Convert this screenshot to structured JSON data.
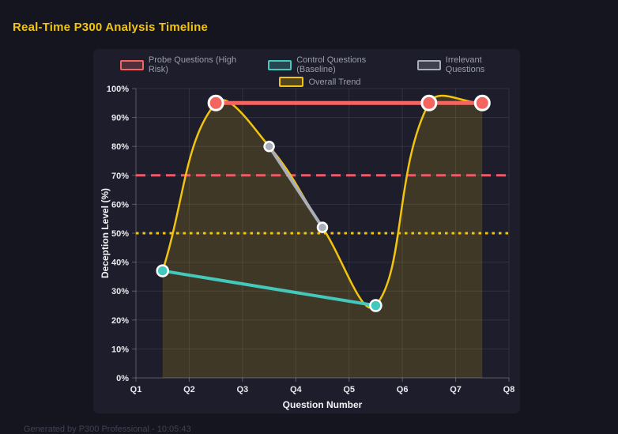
{
  "page": {
    "title": "Real-Time P300 Analysis Timeline",
    "footer": "Generated by P300 Professional - 10:05:43"
  },
  "colors": {
    "background": "#15151f",
    "card": "#1d1d2b",
    "title": "#f2c511",
    "grid": "rgba(255,255,255,0.09)",
    "axis": "rgba(255,255,255,0.28)",
    "tick_label": "#e9e9ee",
    "axis_title": "#f2f2f6",
    "legend_label": "#9a9ea9",
    "point_border": "#ffffff",
    "footer_text": "#3e4254"
  },
  "chart_data": {
    "type": "line",
    "title": "Real-Time P300 Analysis Timeline",
    "xlabel": "Question Number",
    "ylabel": "Deception Level (%)",
    "x_categories": [
      "Q1",
      "Q2",
      "Q3",
      "Q4",
      "Q5",
      "Q6",
      "Q7",
      "Q8"
    ],
    "x_range": [
      1,
      8
    ],
    "ylim": [
      0,
      100
    ],
    "y_ticks": [
      {
        "value": 0,
        "label": "0%"
      },
      {
        "value": 10,
        "label": "10%"
      },
      {
        "value": 20,
        "label": "20%"
      },
      {
        "value": 30,
        "label": "30%"
      },
      {
        "value": 40,
        "label": "40%"
      },
      {
        "value": 50,
        "label": "50%"
      },
      {
        "value": 60,
        "label": "60%"
      },
      {
        "value": 70,
        "label": "70%"
      },
      {
        "value": 80,
        "label": "80%"
      },
      {
        "value": 90,
        "label": "90%"
      },
      {
        "value": 100,
        "label": "100%"
      }
    ],
    "grid": true,
    "legend_position": "top",
    "series": [
      {
        "name": "Probe Questions (High Risk)",
        "color": "#f4655f",
        "line_width": 5,
        "point_radius": 9,
        "points": [
          {
            "x": 2.5,
            "y": 95
          },
          {
            "x": 6.5,
            "y": 95
          },
          {
            "x": 7.5,
            "y": 95
          }
        ]
      },
      {
        "name": "Control Questions (Baseline)",
        "color": "#44c8bc",
        "line_width": 4,
        "point_radius": 7,
        "points": [
          {
            "x": 1.5,
            "y": 37
          },
          {
            "x": 5.5,
            "y": 25
          }
        ]
      },
      {
        "name": "Irrelevant Questions",
        "color": "#a9aeb8",
        "line_width": 4,
        "point_radius": 6,
        "points": [
          {
            "x": 3.5,
            "y": 80
          },
          {
            "x": 4.5,
            "y": 52
          }
        ]
      }
    ],
    "trend": {
      "name": "Overall Trend",
      "color": "#f1c40f",
      "fill_color": "rgba(241,196,15,0.16)",
      "line_width": 2.5,
      "smooth": true,
      "points": [
        {
          "x": 1.5,
          "y": 37
        },
        {
          "x": 2.5,
          "y": 95
        },
        {
          "x": 3.5,
          "y": 80
        },
        {
          "x": 4.5,
          "y": 52
        },
        {
          "x": 5.5,
          "y": 25
        },
        {
          "x": 6.5,
          "y": 95
        },
        {
          "x": 7.5,
          "y": 95
        }
      ]
    },
    "thresholds": [
      {
        "value": 70,
        "color": "#ef5a6a",
        "style": "dashed",
        "width": 3
      },
      {
        "value": 50,
        "color": "#f1c40f",
        "style": "dotted",
        "width": 3
      }
    ]
  }
}
